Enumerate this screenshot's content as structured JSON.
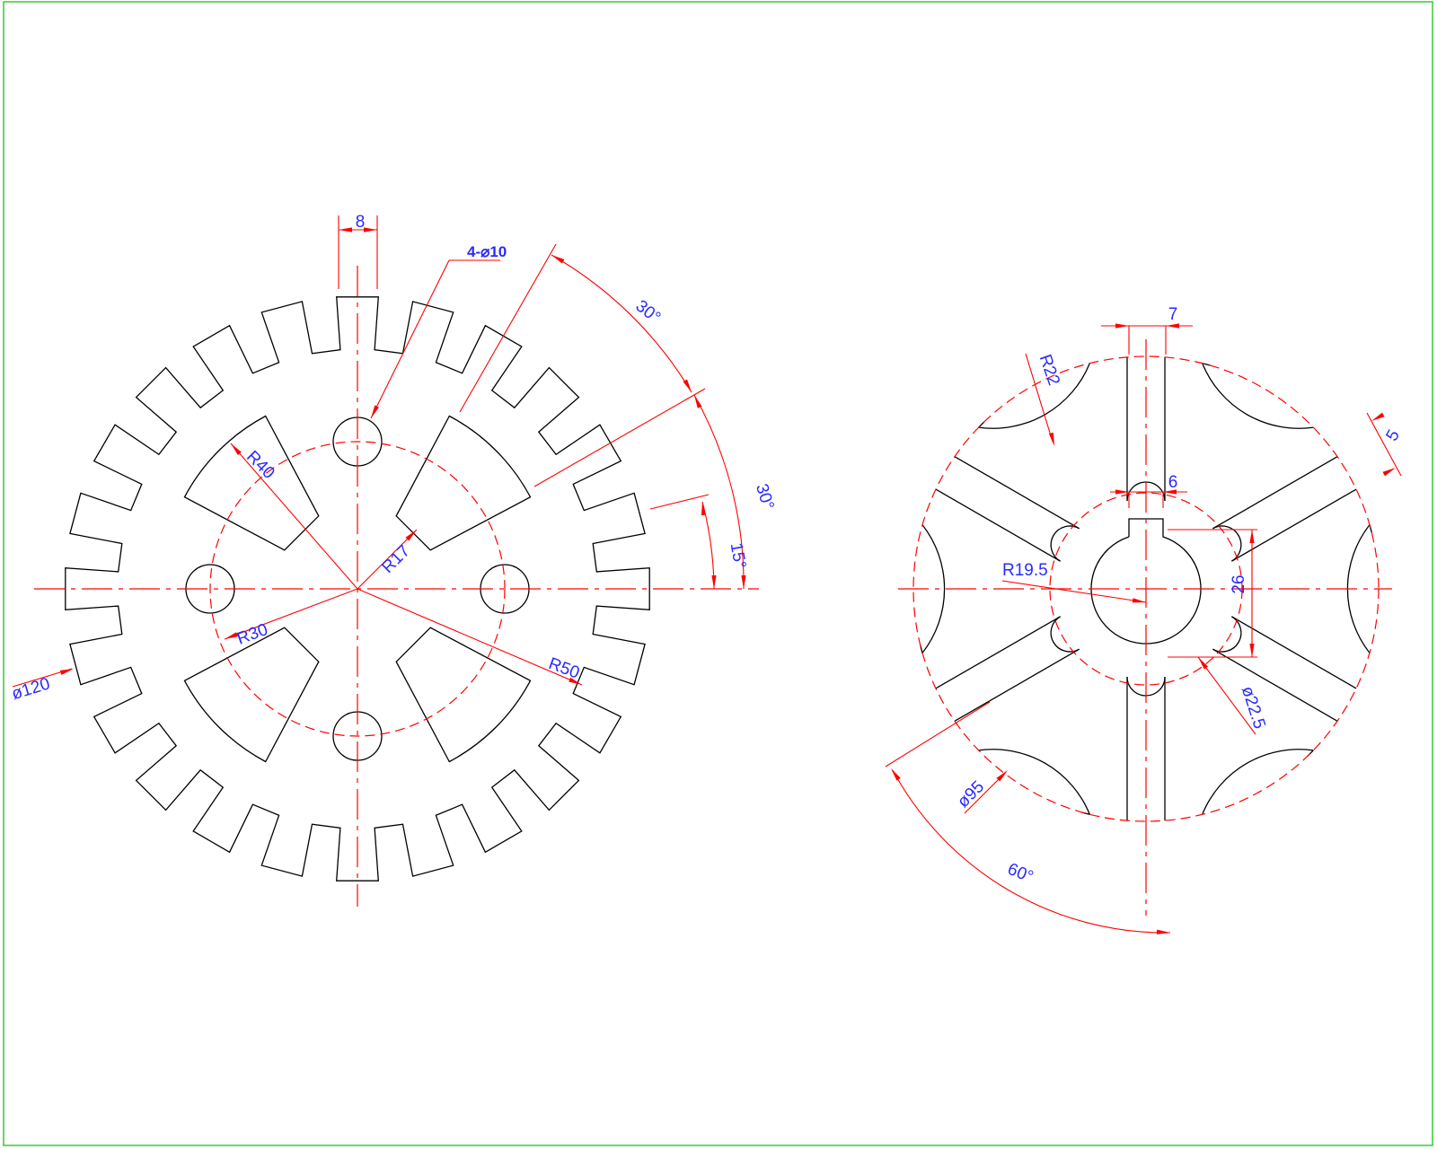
{
  "drawing": {
    "border_color": "#33cc33",
    "line_color": "#000000",
    "center_line_color": "#ff0000",
    "dimension_color": "#2a2aff"
  },
  "gear_view": {
    "dimensions": {
      "tooth_width": "8",
      "holes": "4-⌀10",
      "angle_a": "30°",
      "angle_b": "30°",
      "angle_c": "15°",
      "r40": "R40",
      "r17": "R17",
      "r30": "R30",
      "r50": "R50",
      "dia120": "ø120"
    }
  },
  "wheel_view": {
    "dimensions": {
      "slot_width": "7",
      "key_width": "6",
      "r22": "R22",
      "slot_5": "5",
      "r19_5": "R19.5",
      "key_depth": "26",
      "dia22_5": "ø22.5",
      "dia95": "ø95",
      "angle_60": "60°"
    }
  }
}
